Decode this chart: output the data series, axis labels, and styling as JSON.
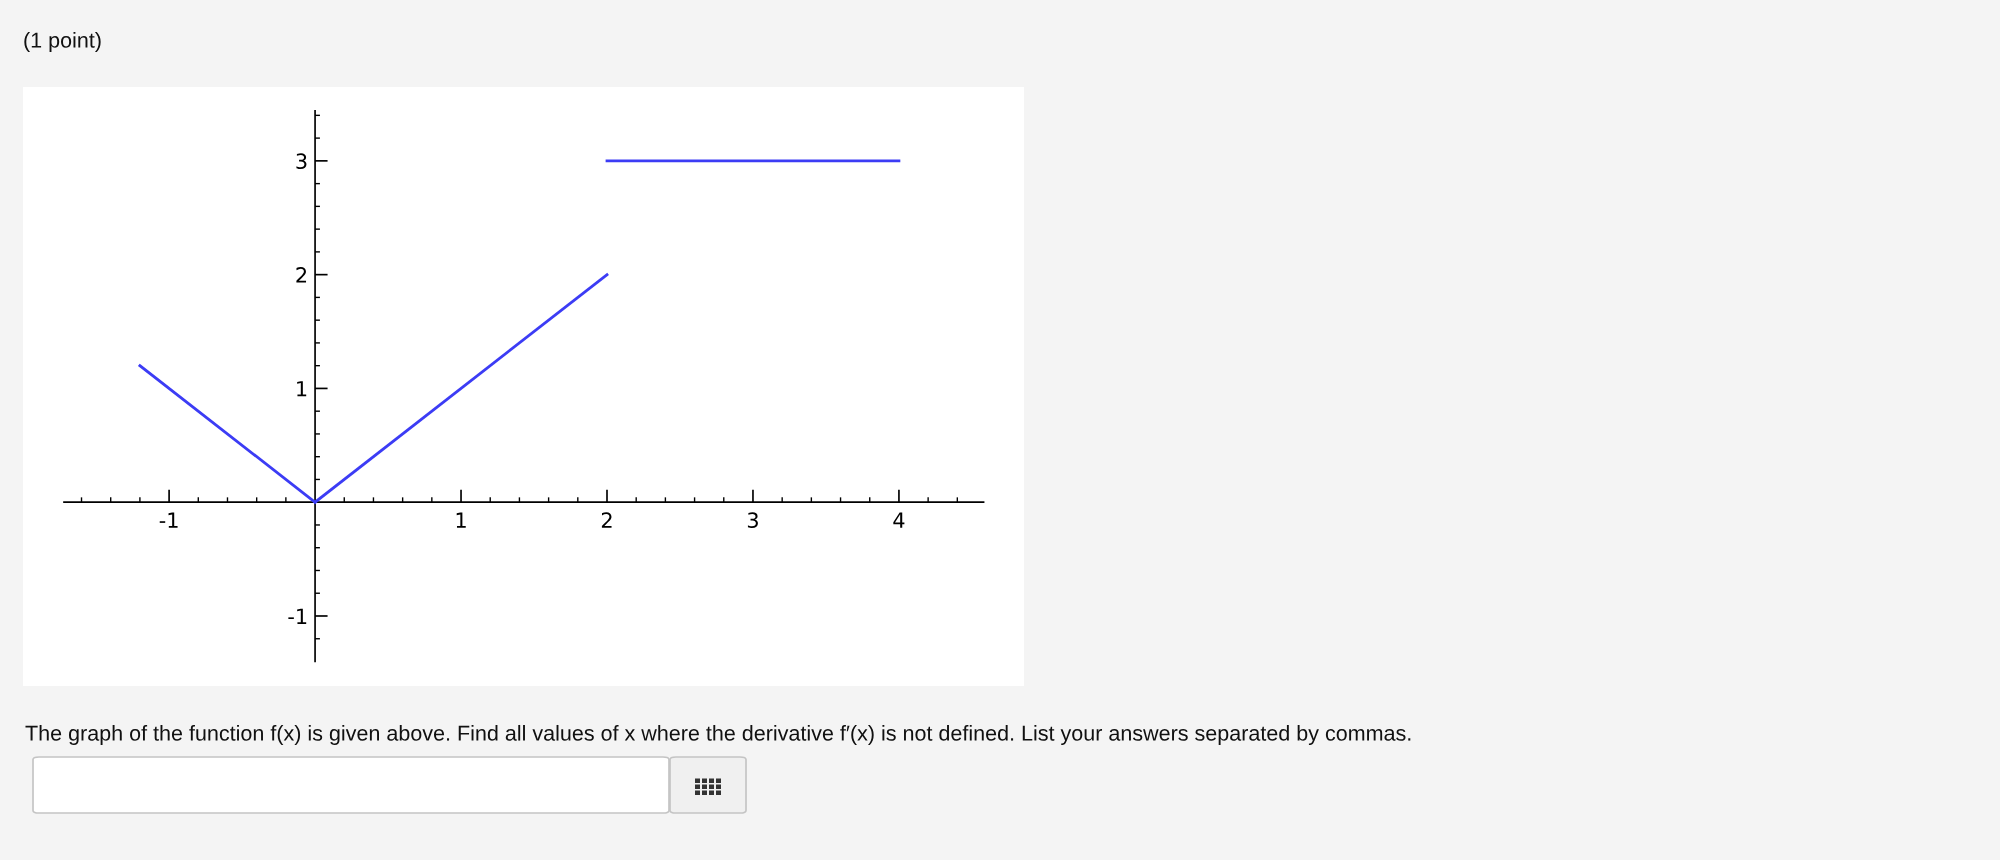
{
  "chart_data": {
    "type": "line",
    "title": "(1 point)",
    "annotations": [
      "The graph of the function f(x) is given above. Find all values of x where the derivative f′(x) is not defined. List your answers separated by commas."
    ],
    "series": [
      {
        "x": [
          -1.2,
          0
        ],
        "values": [
          1.2,
          0
        ],
        "color": "#3c3cf5"
      },
      {
        "x": [
          0,
          2
        ],
        "values": [
          0,
          2
        ],
        "color": "#3c3cf5"
      },
      {
        "x": [
          2,
          4
        ],
        "values": [
          3,
          3
        ],
        "color": "#3c3cf5"
      }
    ],
    "line_style": "solid",
    "xlim": [
      -1.72,
      4.58
    ],
    "ylim": [
      -1.4,
      3.44
    ],
    "xticks": [
      {
        "value": -1.6,
        "label": null
      },
      {
        "value": -1.4,
        "label": null
      },
      {
        "value": -1.2,
        "label": null
      },
      -1,
      {
        "value": -0.8,
        "label": null
      },
      {
        "value": -0.6,
        "label": null
      },
      {
        "value": -0.4,
        "label": null
      },
      {
        "value": -0.2,
        "label": null
      },
      {
        "value": 0.2,
        "label": null
      },
      {
        "value": 0.4,
        "label": null
      },
      {
        "value": 0.6,
        "label": null
      },
      {
        "value": 0.8,
        "label": null
      },
      1,
      {
        "value": 1.2,
        "label": null
      },
      {
        "value": 1.4,
        "label": null
      },
      {
        "value": 1.6,
        "label": null
      },
      {
        "value": 1.8,
        "label": null
      },
      2,
      {
        "value": 2.2,
        "label": null
      },
      {
        "value": 2.4,
        "label": null
      },
      {
        "value": 2.6,
        "label": null
      },
      {
        "value": 2.8,
        "label": null
      },
      3,
      {
        "value": 3.2,
        "label": null
      },
      {
        "value": 3.4,
        "label": null
      },
      {
        "value": 3.6,
        "label": null
      },
      {
        "value": 3.8,
        "label": null
      },
      4,
      {
        "value": 4.2,
        "label": null
      },
      {
        "value": 4.4,
        "label": null
      }
    ],
    "yticks": [
      {
        "value": -1.2,
        "label": null
      },
      -1,
      {
        "value": -0.8,
        "label": null
      },
      {
        "value": -0.6,
        "label": null
      },
      {
        "value": -0.4,
        "label": null
      },
      {
        "value": -0.2,
        "label": null
      },
      {
        "value": 0.2,
        "label": null
      },
      {
        "value": 0.4,
        "label": null
      },
      {
        "value": 0.6,
        "label": null
      },
      {
        "value": 0.8,
        "label": null
      },
      1,
      {
        "value": 1.2,
        "label": null
      },
      {
        "value": 1.4,
        "label": null
      },
      {
        "value": 1.6,
        "label": null
      },
      {
        "value": 1.8,
        "label": null
      },
      2,
      {
        "value": 2.2,
        "label": null
      },
      {
        "value": 2.4,
        "label": null
      },
      {
        "value": 2.6,
        "label": null
      },
      {
        "value": 2.8,
        "label": null
      },
      3,
      {
        "value": 3.2,
        "label": null
      },
      {
        "value": 3.4,
        "label": null
      }
    ]
  }
}
